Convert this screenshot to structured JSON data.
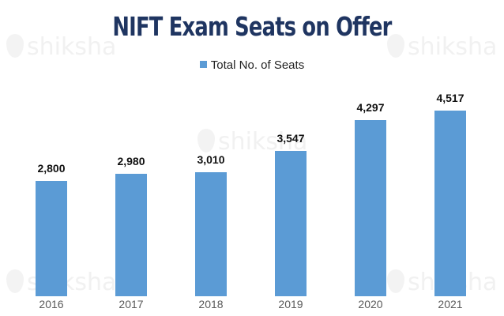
{
  "title": "NIFT Exam Seats on Offer",
  "legend": {
    "label": "Total No. of Seats",
    "color": "#5b9bd5"
  },
  "watermark": "shiksha",
  "chart_data": {
    "type": "bar",
    "title": "NIFT Exam Seats on Offer",
    "categories": [
      "2016",
      "2017",
      "2018",
      "2019",
      "2020",
      "2021"
    ],
    "series": [
      {
        "name": "Total No. of Seats",
        "values": [
          2800,
          2980,
          3010,
          3547,
          4297,
          4517
        ],
        "color": "#5b9bd5"
      }
    ],
    "labels": [
      "2,800",
      "2,980",
      "3,010",
      "3,547",
      "4,297",
      "4,517"
    ],
    "xlabel": "",
    "ylabel": "",
    "ylim": [
      0,
      5000
    ],
    "grid": false,
    "legend_position": "top"
  }
}
